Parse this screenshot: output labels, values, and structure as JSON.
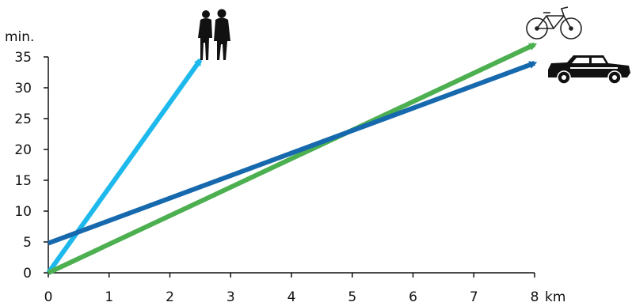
{
  "chart_data": {
    "type": "line",
    "xlabel": "km",
    "ylabel": "min.",
    "xlim": [
      0,
      8
    ],
    "ylim": [
      0,
      35
    ],
    "x_ticks": [
      "0",
      "1",
      "2",
      "3",
      "4",
      "5",
      "6",
      "7",
      "8"
    ],
    "y_ticks": [
      "0",
      "5",
      "10",
      "15",
      "20",
      "25",
      "30",
      "35"
    ],
    "grid": false,
    "legend": "none",
    "series": [
      {
        "icon": "walking-people-icon",
        "color": "#1EB9EC",
        "points": [
          [
            0,
            0
          ],
          [
            2.5,
            34.5
          ]
        ]
      },
      {
        "icon": "bicycle-icon",
        "color": "#4CAF50",
        "points": [
          [
            0,
            0
          ],
          [
            8,
            37
          ]
        ]
      },
      {
        "icon": "car-icon",
        "color": "#1769AE",
        "points": [
          [
            0,
            4.8
          ],
          [
            8,
            34
          ]
        ]
      }
    ]
  }
}
